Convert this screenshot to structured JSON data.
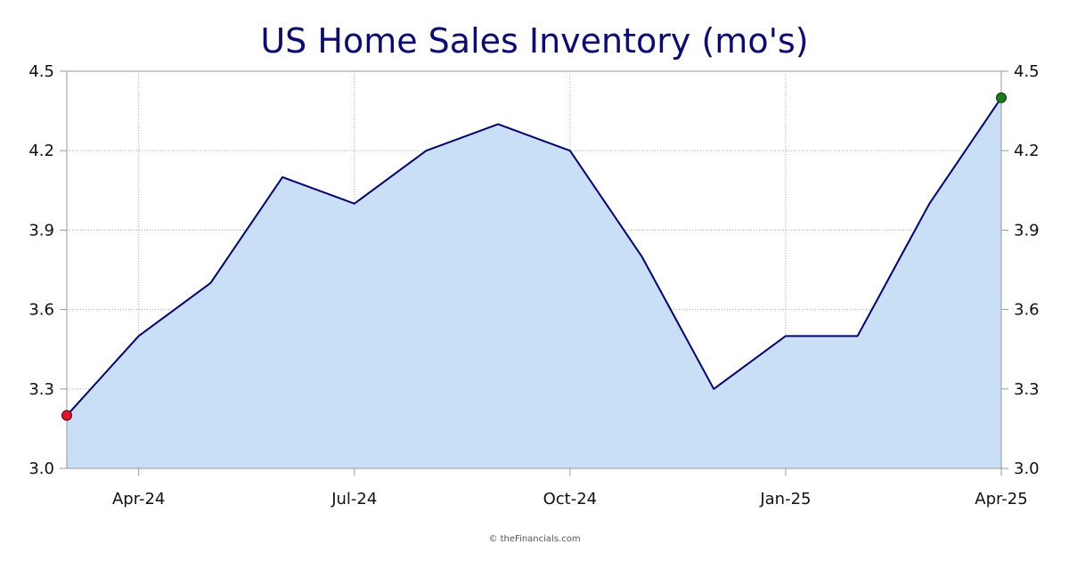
{
  "chart_data": {
    "type": "area",
    "title": "US Home Sales Inventory (mo's)",
    "xlabel": "",
    "ylabel": "",
    "x": [
      "Mar-24",
      "Apr-24",
      "May-24",
      "Jun-24",
      "Jul-24",
      "Aug-24",
      "Sep-24",
      "Oct-24",
      "Nov-24",
      "Dec-24",
      "Jan-25",
      "Feb-25",
      "Mar-25",
      "Apr-25"
    ],
    "series": [
      {
        "values": [
          3.2,
          3.5,
          3.7,
          4.1,
          4.0,
          4.2,
          4.3,
          4.2,
          3.8,
          3.3,
          3.5,
          3.5,
          4.0,
          4.4
        ]
      }
    ],
    "x_tick_labels": [
      "Apr-24",
      "Jul-24",
      "Oct-24",
      "Jan-25",
      "Apr-25"
    ],
    "y_ticks": [
      "3.0",
      "3.3",
      "3.6",
      "3.9",
      "4.2",
      "4.5"
    ],
    "ylim": [
      3.0,
      4.5
    ],
    "grid": true,
    "y_axis_both_sides": true,
    "colors": {
      "line": "#000080",
      "fill": "#c8dff6",
      "start_marker": "#e8102a",
      "end_marker": "#1a7a1a",
      "title": "#0a0a7a"
    }
  },
  "credit": "© theFinancials.com"
}
